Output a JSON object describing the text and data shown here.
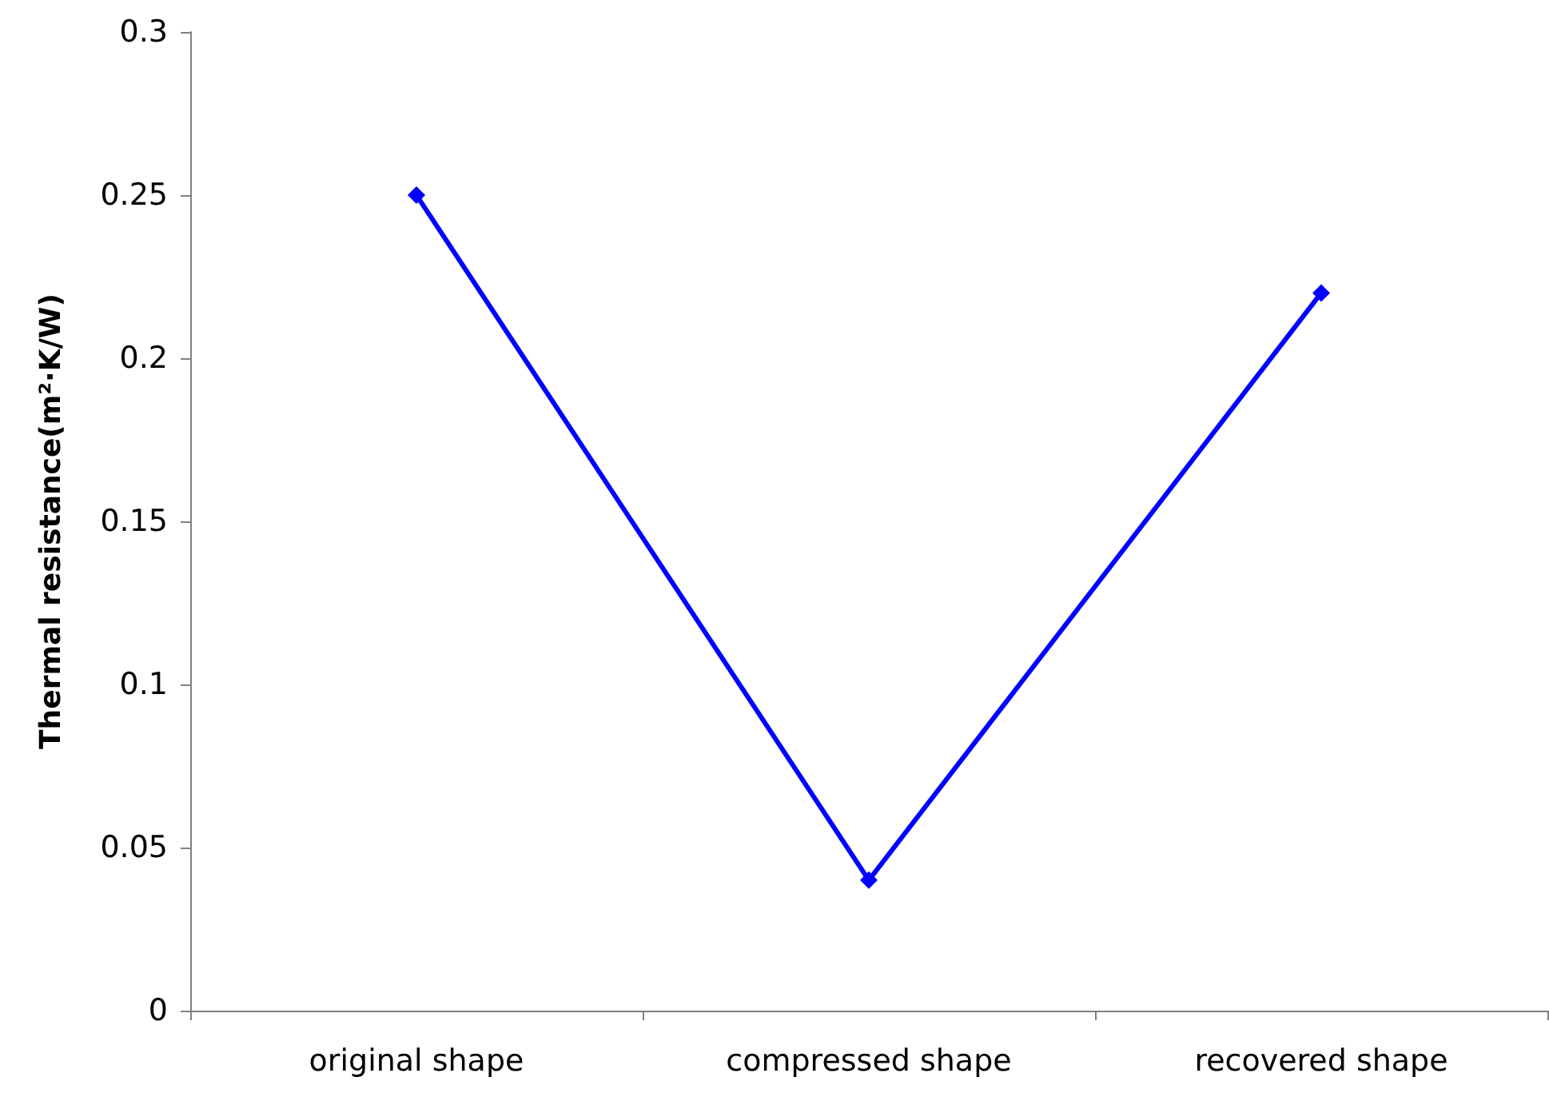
{
  "chart_data": {
    "type": "line",
    "ylabel": "Thermal resistance(m²·K/W)",
    "categories": [
      "original shape",
      "compressed shape",
      "recovered shape"
    ],
    "series": [
      {
        "color": "#0000ff",
        "values": [
          0.25,
          0.04,
          0.22
        ]
      }
    ],
    "ylim": [
      0,
      0.3
    ],
    "yticks": [
      0,
      0.05,
      0.1,
      0.15,
      0.2,
      0.25,
      0.3
    ],
    "marker": "diamond",
    "line_style": "solid"
  }
}
